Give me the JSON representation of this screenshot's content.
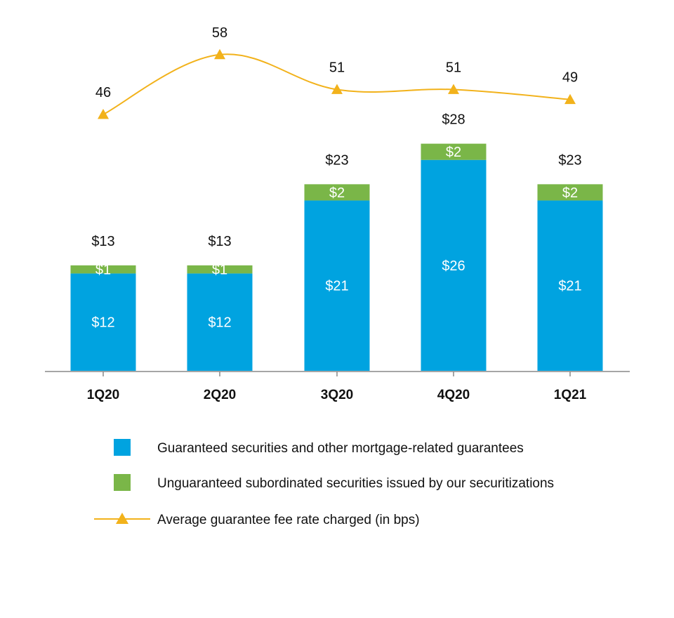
{
  "chart_data": {
    "type": "bar",
    "stacked": true,
    "categories": [
      "1Q20",
      "2Q20",
      "3Q20",
      "4Q20",
      "1Q21"
    ],
    "series": [
      {
        "name": "Guaranteed securities and other mortgage-related guarantees",
        "kind": "bar",
        "color": "#00a3e0",
        "values": [
          12,
          12,
          21,
          26,
          21
        ],
        "labels": [
          "$12",
          "$12",
          "$21",
          "$26",
          "$21"
        ]
      },
      {
        "name": "Unguaranteed subordinated securities issued by our securitizations",
        "kind": "bar",
        "color": "#7ab648",
        "values": [
          1,
          1,
          2,
          2,
          2
        ],
        "labels": [
          "$1",
          "$1",
          "$2",
          "$2",
          "$2"
        ]
      },
      {
        "name": "Average guarantee fee rate charged (in bps)",
        "kind": "line",
        "color": "#f2b21b",
        "marker": "triangle",
        "values": [
          46,
          58,
          51,
          51,
          49
        ],
        "labels": [
          "46",
          "58",
          "51",
          "51",
          "49"
        ]
      }
    ],
    "totals": [
      "$13",
      "$13",
      "$23",
      "$28",
      "$23"
    ],
    "legend_position": "bottom",
    "grid": false
  }
}
